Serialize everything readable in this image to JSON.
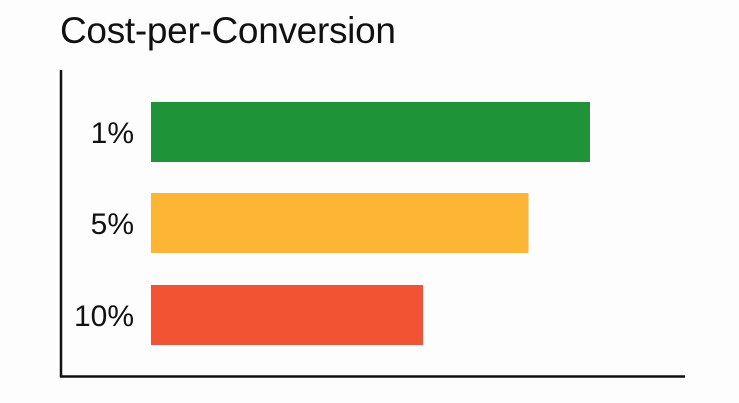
{
  "chart_data": {
    "type": "bar",
    "orientation": "horizontal",
    "title": "Cost-per-Conversion",
    "xlabel": "",
    "ylabel": "",
    "categories": [
      "1%",
      "5%",
      "10%"
    ],
    "values": [
      100,
      86,
      62
    ],
    "value_scale": "relative (no numeric axis shown)",
    "xlim": [
      0,
      121
    ],
    "colors": [
      "#1e9338",
      "#ffb534",
      "#f25433"
    ],
    "grid": false,
    "legend": "none"
  }
}
